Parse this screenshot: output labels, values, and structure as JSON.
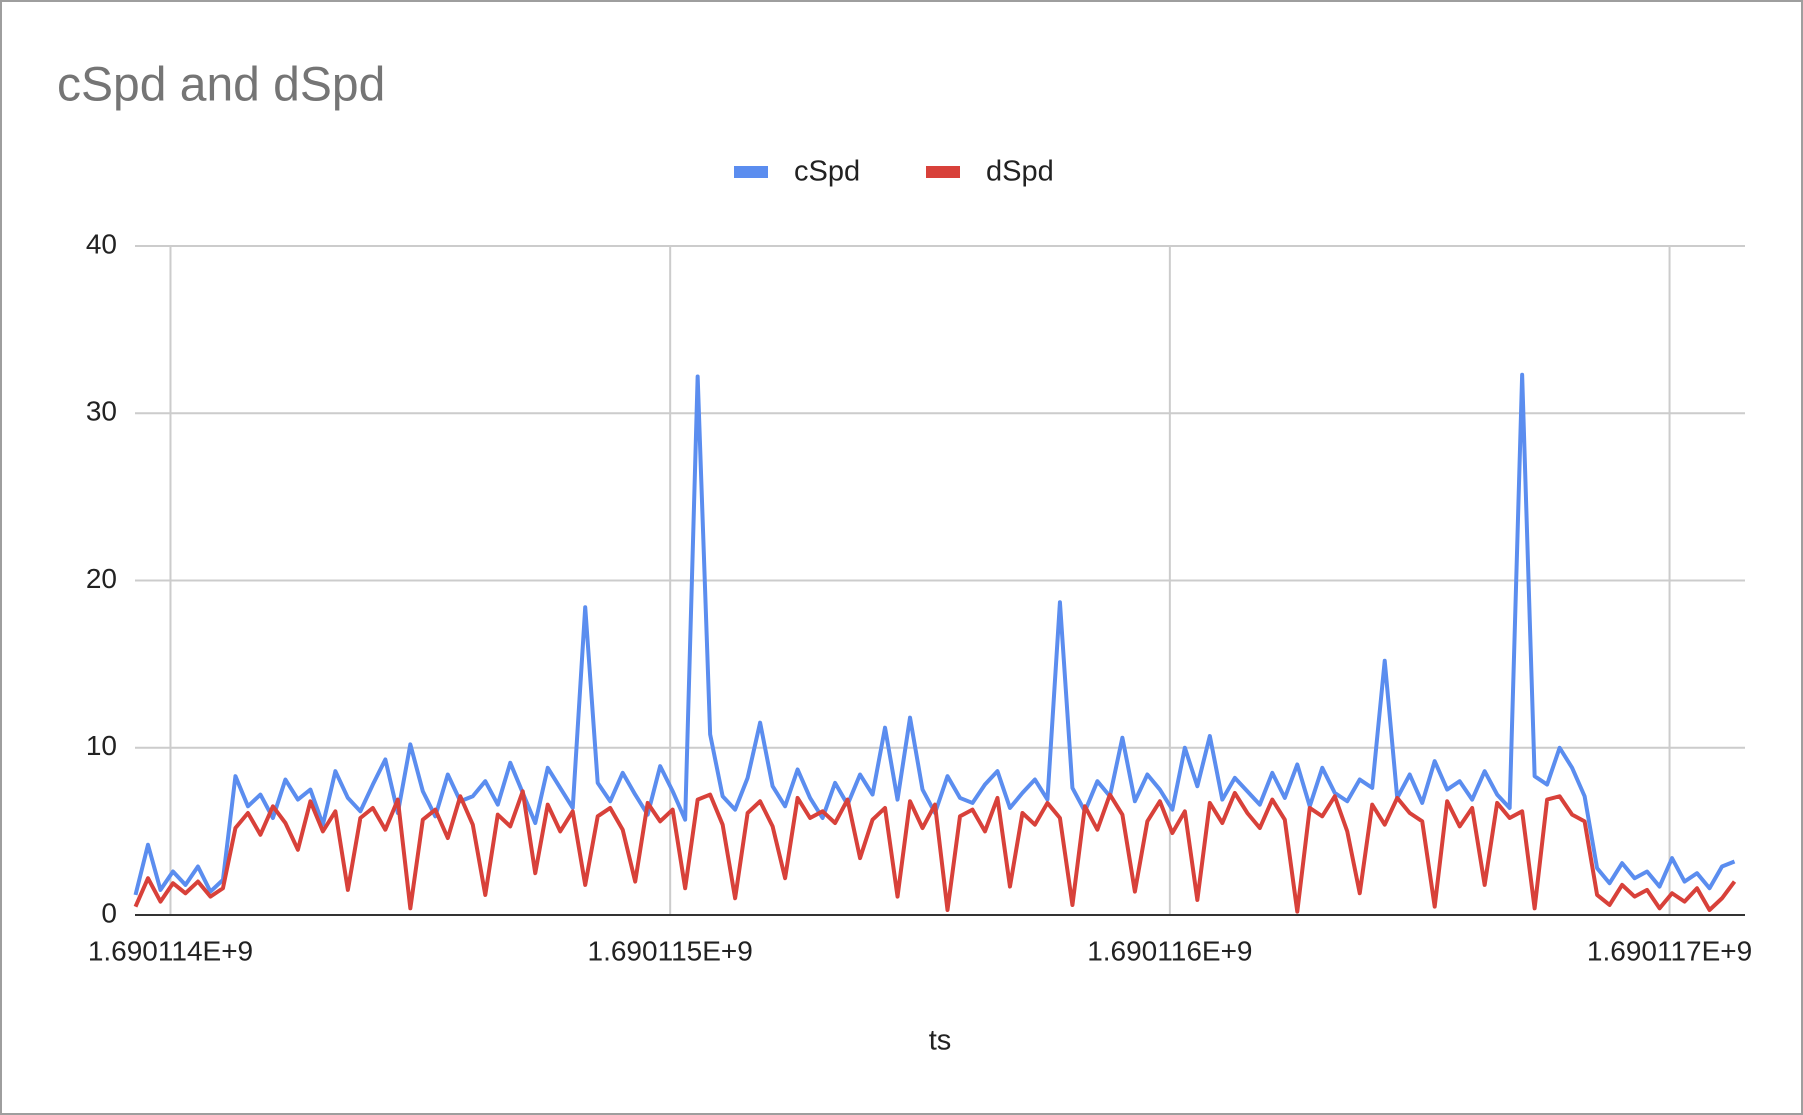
{
  "chart_data": {
    "type": "line",
    "title": "cSpd and dSpd",
    "x_label": "ts",
    "legend": "top",
    "grid": true,
    "xlim": [
      1690113929,
      1690117151
    ],
    "xticks": [
      {
        "value": 1690114000,
        "label": "1.690114E+9"
      },
      {
        "value": 1690115000,
        "label": "1.690115E+9"
      },
      {
        "value": 1690116000,
        "label": "1.690116E+9"
      },
      {
        "value": 1690117000,
        "label": "1.690117E+9"
      }
    ],
    "ylim": [
      0,
      40
    ],
    "yticks": [
      0,
      10,
      20,
      30,
      40
    ],
    "x": [
      1690113930,
      1690113955,
      1690113980,
      1690114005,
      1690114030,
      1690114055,
      1690114080,
      1690114105,
      1690114130,
      1690114155,
      1690114180,
      1690114205,
      1690114230,
      1690114255,
      1690114280,
      1690114305,
      1690114330,
      1690114355,
      1690114380,
      1690114405,
      1690114430,
      1690114455,
      1690114480,
      1690114505,
      1690114530,
      1690114555,
      1690114580,
      1690114605,
      1690114630,
      1690114655,
      1690114680,
      1690114705,
      1690114730,
      1690114755,
      1690114780,
      1690114805,
      1690114830,
      1690114855,
      1690114880,
      1690114905,
      1690114930,
      1690114955,
      1690114980,
      1690115005,
      1690115030,
      1690115055,
      1690115080,
      1690115105,
      1690115130,
      1690115155,
      1690115180,
      1690115205,
      1690115230,
      1690115255,
      1690115280,
      1690115305,
      1690115330,
      1690115355,
      1690115380,
      1690115405,
      1690115430,
      1690115455,
      1690115480,
      1690115505,
      1690115530,
      1690115555,
      1690115580,
      1690115605,
      1690115630,
      1690115655,
      1690115680,
      1690115705,
      1690115730,
      1690115755,
      1690115780,
      1690115805,
      1690115830,
      1690115855,
      1690115880,
      1690115905,
      1690115930,
      1690115955,
      1690115980,
      1690116005,
      1690116030,
      1690116055,
      1690116080,
      1690116105,
      1690116130,
      1690116155,
      1690116180,
      1690116205,
      1690116230,
      1690116255,
      1690116280,
      1690116305,
      1690116330,
      1690116355,
      1690116380,
      1690116405,
      1690116430,
      1690116455,
      1690116480,
      1690116505,
      1690116530,
      1690116555,
      1690116580,
      1690116605,
      1690116630,
      1690116655,
      1690116680,
      1690116705,
      1690116730,
      1690116755,
      1690116780,
      1690116805,
      1690116830,
      1690116855,
      1690116880,
      1690116905,
      1690116930,
      1690116955,
      1690116980,
      1690117005,
      1690117030,
      1690117055,
      1690117080,
      1690117105,
      1690117130
    ],
    "series": [
      {
        "name": "cSpd",
        "color": "#5b8def",
        "values": [
          1.2,
          4.2,
          1.5,
          2.6,
          1.8,
          2.9,
          1.4,
          2.1,
          8.3,
          6.5,
          7.2,
          5.8,
          8.1,
          6.9,
          7.5,
          5.4,
          8.6,
          7.0,
          6.2,
          7.8,
          9.3,
          6.1,
          10.2,
          7.4,
          5.9,
          8.4,
          6.8,
          7.1,
          8.0,
          6.6,
          9.1,
          7.3,
          5.5,
          8.8,
          7.6,
          6.4,
          18.4,
          7.9,
          6.8,
          8.5,
          7.2,
          6.0,
          8.9,
          7.4,
          5.7,
          32.2,
          10.8,
          7.1,
          6.3,
          8.2,
          11.5,
          7.7,
          6.5,
          8.7,
          7.0,
          5.8,
          7.9,
          6.6,
          8.4,
          7.2,
          11.2,
          6.9,
          11.8,
          7.5,
          6.1,
          8.3,
          7.0,
          6.7,
          7.8,
          8.6,
          6.4,
          7.3,
          8.1,
          6.9,
          18.7,
          7.6,
          6.2,
          8.0,
          7.1,
          10.6,
          6.8,
          8.4,
          7.5,
          6.3,
          10.0,
          7.7,
          10.7,
          6.9,
          8.2,
          7.4,
          6.6,
          8.5,
          7.0,
          9.0,
          6.5,
          8.8,
          7.3,
          6.8,
          8.1,
          7.6,
          15.2,
          7.0,
          8.4,
          6.7,
          9.2,
          7.5,
          8.0,
          6.9,
          8.6,
          7.2,
          6.4,
          32.3,
          8.3,
          7.8,
          10.0,
          8.8,
          7.1,
          2.8,
          1.9,
          3.1,
          2.2,
          2.6,
          1.7,
          3.4,
          2.0,
          2.5,
          1.6,
          2.9,
          3.2
        ]
      },
      {
        "name": "dSpd",
        "color": "#d8413a",
        "values": [
          0.5,
          2.2,
          0.8,
          1.9,
          1.3,
          2.0,
          1.1,
          1.6,
          5.2,
          6.1,
          4.8,
          6.5,
          5.5,
          3.9,
          6.8,
          5.0,
          6.2,
          1.5,
          5.8,
          6.4,
          5.1,
          6.9,
          0.4,
          5.7,
          6.3,
          4.6,
          7.1,
          5.4,
          1.2,
          6.0,
          5.3,
          7.4,
          2.5,
          6.6,
          5.0,
          6.2,
          1.8,
          5.9,
          6.4,
          5.1,
          2.0,
          6.7,
          5.6,
          6.3,
          1.6,
          6.9,
          7.2,
          5.4,
          1.0,
          6.1,
          6.8,
          5.3,
          2.2,
          7.0,
          5.8,
          6.2,
          5.5,
          6.9,
          3.4,
          5.7,
          6.4,
          1.1,
          6.8,
          5.2,
          6.6,
          0.3,
          5.9,
          6.3,
          5.0,
          7.0,
          1.7,
          6.1,
          5.4,
          6.7,
          5.8,
          0.6,
          6.5,
          5.1,
          7.2,
          6.0,
          1.4,
          5.6,
          6.8,
          4.9,
          6.2,
          0.9,
          6.7,
          5.5,
          7.3,
          6.1,
          5.2,
          6.9,
          5.7,
          0.2,
          6.4,
          5.9,
          7.1,
          5.0,
          1.3,
          6.6,
          5.4,
          7.0,
          6.1,
          5.6,
          0.5,
          6.8,
          5.3,
          6.4,
          1.8,
          6.7,
          5.8,
          6.2,
          0.4,
          6.9,
          7.1,
          6.0,
          5.6,
          1.2,
          0.6,
          1.8,
          1.1,
          1.5,
          0.4,
          1.3,
          0.8,
          1.6,
          0.3,
          1.0,
          2.0
        ]
      }
    ]
  }
}
